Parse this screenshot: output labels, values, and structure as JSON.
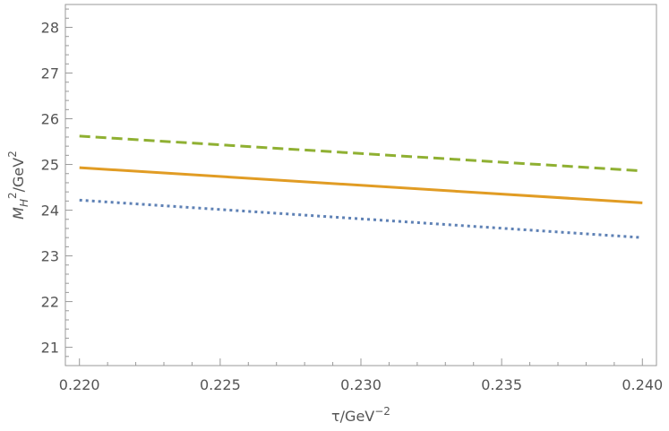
{
  "chart_data": {
    "type": "line",
    "xlabel": {
      "main": "τ/GeV",
      "sup": "−2"
    },
    "ylabel": {
      "parts": [
        "M",
        "H",
        "2",
        "/GeV",
        "2"
      ]
    },
    "xlim": [
      0.2195,
      0.2405
    ],
    "ylim": [
      20.6,
      28.5
    ],
    "x_ticks": [
      0.22,
      0.225,
      0.23,
      0.235,
      0.24
    ],
    "x_tick_labels": [
      "0.220",
      "0.225",
      "0.230",
      "0.235",
      "0.240"
    ],
    "y_ticks": [
      21,
      22,
      23,
      24,
      25,
      26,
      27,
      28
    ],
    "y_tick_labels": [
      "21",
      "22",
      "23",
      "24",
      "25",
      "26",
      "27",
      "28"
    ],
    "frame": true,
    "grid": false,
    "legend": "none",
    "series": [
      {
        "x": [
          0.22,
          0.24
        ],
        "y": [
          25.62,
          24.86
        ],
        "color": "#8fb032",
        "dash": "dashed"
      },
      {
        "x": [
          0.22,
          0.24
        ],
        "y": [
          24.93,
          24.16
        ],
        "color": "#e19c24",
        "dash": "solid"
      },
      {
        "x": [
          0.22,
          0.24
        ],
        "y": [
          24.22,
          23.4
        ],
        "color": "#5e81b5",
        "dash": "dotted"
      }
    ]
  }
}
